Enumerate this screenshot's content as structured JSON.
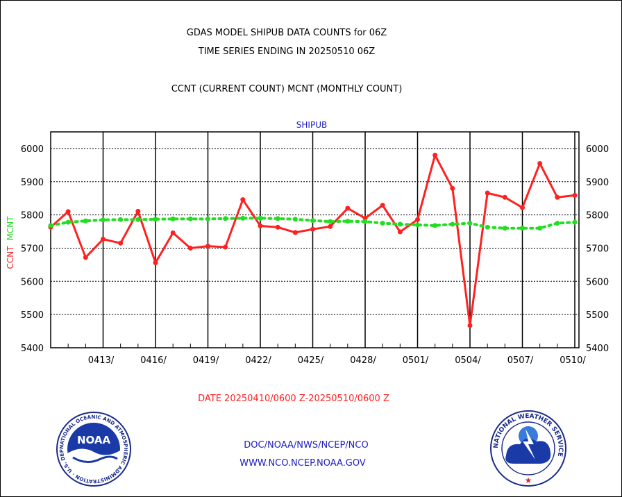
{
  "header": {
    "title_line1": "GDAS MODEL SHIPUB DATA COUNTS for 06Z",
    "title_line2": "TIME SERIES ENDING IN 20250510 06Z",
    "subtitle": "CCNT (CURRENT COUNT) MCNT (MONTHLY COUNT)"
  },
  "footer": {
    "date_range": "DATE 20250410/0600 Z-20250510/0600 Z",
    "org_line": "DOC/NOAA/NWS/NCEP/NCO",
    "url_line": "WWW.NCO.NCEP.NOAA.GOV"
  },
  "logos": {
    "left_name": "NOAA",
    "left_ring_text": "NATIONAL OCEANIC AND ATMOSPHERIC ADMINISTRATION · U.S. DEPARTMENT OF COMMERCE ·",
    "right_ring_text": "NATIONAL WEATHER SERVICE"
  },
  "colors": {
    "ccnt": "#ff2020",
    "mcnt": "#22dd22",
    "chart_title": "#2020c0",
    "footer_text": "#2020c0",
    "date_text": "#ff2020"
  },
  "chart_data": {
    "type": "line",
    "title": "SHIPUB",
    "ylabel_ccnt": "CCNT",
    "ylabel_mcnt": "MCNT",
    "ylim": [
      5400,
      6050
    ],
    "yticks": [
      5400,
      5500,
      5600,
      5700,
      5800,
      5900,
      6000
    ],
    "ytick_labels": [
      "5400",
      "5500",
      "5600",
      "5700",
      "5800",
      "5900",
      "6000"
    ],
    "xtick_labels": [
      "0413/",
      "0416/",
      "0419/",
      "0422/",
      "0425/",
      "0428/",
      "0501/",
      "0504/",
      "0507/",
      "0510/"
    ],
    "grid": true,
    "x": [
      "0410",
      "0411",
      "0412",
      "0413",
      "0414",
      "0415",
      "0416",
      "0417",
      "0418",
      "0419",
      "0420",
      "0421",
      "0422",
      "0423",
      "0424",
      "0425",
      "0426",
      "0427",
      "0428",
      "0429",
      "0430",
      "0501",
      "0502",
      "0503",
      "0504",
      "0505",
      "0506",
      "0507",
      "0508",
      "0509",
      "0510"
    ],
    "series": [
      {
        "name": "CCNT",
        "style": "solid",
        "values": [
          5763,
          5810,
          5672,
          5727,
          5715,
          5811,
          5656,
          5746,
          5700,
          5706,
          5703,
          5846,
          5767,
          5763,
          5747,
          5757,
          5765,
          5820,
          5790,
          5829,
          5749,
          5786,
          5980,
          5880,
          5467,
          5866,
          5853,
          5822,
          5955,
          5853,
          5859
        ]
      },
      {
        "name": "MCNT",
        "style": "dotted",
        "values": [
          5768,
          5778,
          5782,
          5785,
          5786,
          5786,
          5787,
          5788,
          5788,
          5788,
          5789,
          5790,
          5790,
          5789,
          5787,
          5783,
          5780,
          5781,
          5780,
          5775,
          5772,
          5770,
          5768,
          5772,
          5775,
          5763,
          5760,
          5760,
          5760,
          5775,
          5778
        ]
      }
    ]
  }
}
